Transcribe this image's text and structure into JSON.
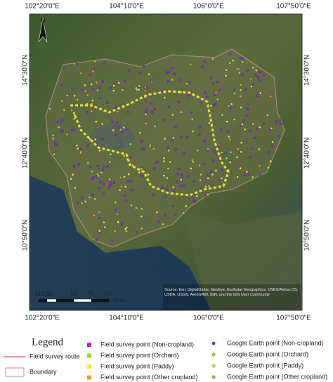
{
  "map": {
    "top_labels": [
      "102°20'0\"E",
      "104°10'0\"E",
      "106°0'0\"E",
      "107°50'0\"E"
    ],
    "bottom_labels": [
      "102°20'0\"E",
      "104°10'0\"E",
      "106°0'0\"E",
      "107°50'0\"E"
    ],
    "left_labels": [
      "14°30'0\"N",
      "12°40'0\"N",
      "10°50'0\"N"
    ],
    "right_labels": [
      "14°30'0\"N",
      "12°40'0\"N",
      "10°50'0\"N"
    ],
    "north": "N",
    "scale_labels": [
      "0",
      "12.5",
      "25",
      "50",
      "75",
      "100"
    ],
    "scale_unit": "Miles",
    "source": "Source: Esri, DigitalGlobe, GeoEye, Earthstar Geographics, CNES/Airbus DS, USDA, USGS, AeroGRID, IGN, and the GIS User Community"
  },
  "legend": {
    "title": "Legend",
    "route": "Field survey route",
    "boundary": "Boundary",
    "field_points": [
      "Field survey point (Non-cropland)",
      "Field survey point (Orchard)",
      "Field survey point (Paddy)",
      "Field survey point (Other cropland)"
    ],
    "earth_points": [
      "Google Earth point (Non-cropland)",
      "Google Earth point (Orchard)",
      "Google Earth point (Paddy)",
      "Google Earth point (Other cropland)"
    ]
  }
}
